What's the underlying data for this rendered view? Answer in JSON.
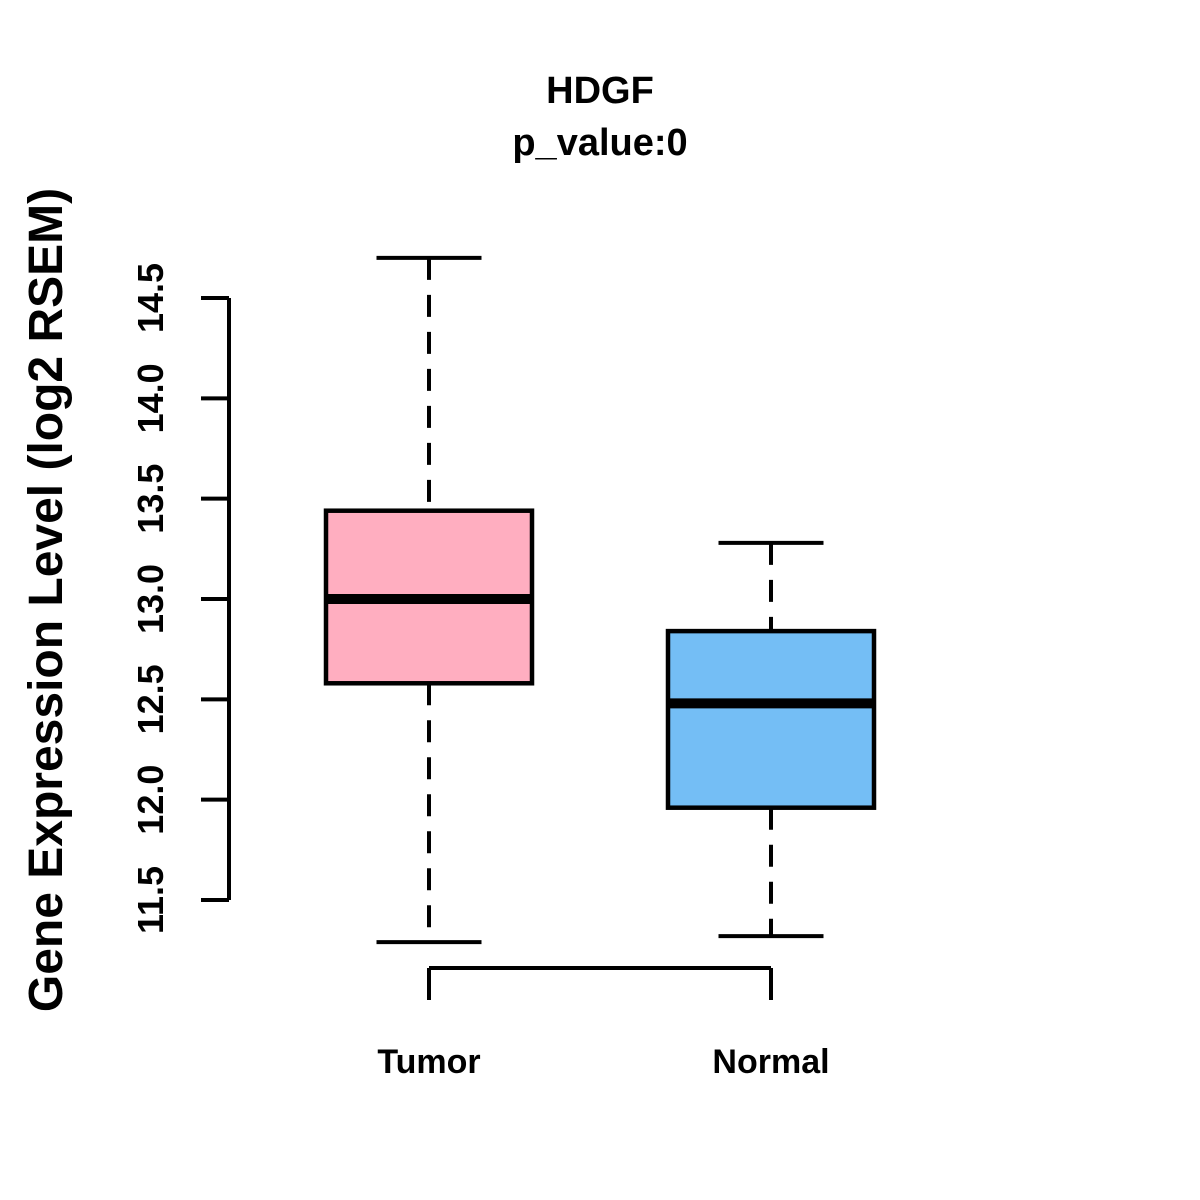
{
  "chart_data": {
    "type": "boxplot",
    "title": "HDGF",
    "subtitle": "p_value:0",
    "ylabel": "Gene Expression Level (log2 RSEM)",
    "xlabel": "",
    "ylim": [
      11.5,
      14.5
    ],
    "grid": false,
    "legend": false,
    "yticks": [
      {
        "value": 11.5,
        "label": "11.5"
      },
      {
        "value": 12.0,
        "label": "12.0"
      },
      {
        "value": 12.5,
        "label": "12.5"
      },
      {
        "value": 13.0,
        "label": "13.0"
      },
      {
        "value": 13.5,
        "label": "13.5"
      },
      {
        "value": 14.0,
        "label": "14.0"
      },
      {
        "value": 14.5,
        "label": "14.5"
      }
    ],
    "categories": [
      "Tumor",
      "Normal"
    ],
    "series": [
      {
        "name": "Tumor",
        "fill_color": "#ffaec0",
        "whisker_low": 11.29,
        "q1": 12.58,
        "median": 13.0,
        "q3": 13.44,
        "whisker_high": 14.7
      },
      {
        "name": "Normal",
        "fill_color": "#74bef5",
        "whisker_low": 11.32,
        "q1": 11.96,
        "median": 12.48,
        "q3": 12.84,
        "whisker_high": 13.28
      }
    ],
    "colors": {
      "stroke": "#000000",
      "background": "#ffffff"
    }
  }
}
